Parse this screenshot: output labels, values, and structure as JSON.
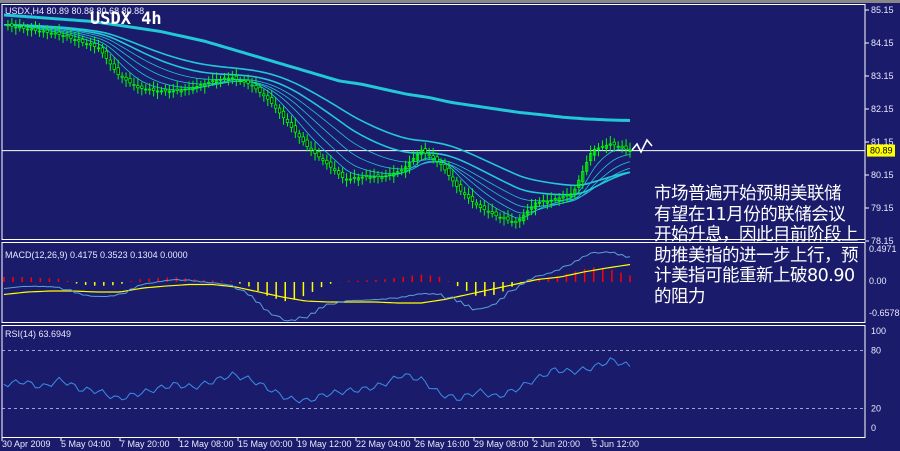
{
  "chart_data": [
    {
      "type": "line",
      "panel": "price",
      "symbol_header": "USDX,H4 80.89 80.88 80.68 80.88",
      "title": "USDX 4h",
      "ylim": [
        78.0,
        85.3
      ],
      "y_ticks": [
        "85.15",
        "84.15",
        "83.15",
        "82.15",
        "81.15",
        "80.15",
        "79.15",
        "78.15"
      ],
      "current_price": "80.89",
      "x_tick_labels": [
        "30 Apr 2009",
        "5 May 04:00",
        "7 May 20:00",
        "12 May 08:00",
        "15 May 00:00",
        "19 May 12:00",
        "22 May 04:00",
        "26 May 16:00",
        "29 May 08:00",
        "2 Jun 20:00",
        "5 Jun 12:00"
      ],
      "close": [
        84.7,
        84.6,
        84.5,
        84.4,
        84.2,
        84.0,
        83.2,
        82.8,
        82.7,
        82.7,
        82.8,
        83.0,
        83.1,
        82.9,
        82.4,
        81.7,
        81.0,
        80.5,
        80.0,
        80.1,
        80.1,
        80.3,
        80.9,
        80.5,
        79.7,
        79.2,
        78.9,
        78.7,
        79.3,
        79.4,
        79.6,
        80.9,
        81.1,
        80.89
      ],
      "long_ma": [
        85.0,
        84.95,
        84.9,
        84.85,
        84.8,
        84.7,
        84.6,
        84.5,
        84.35,
        84.2,
        84.0,
        83.8,
        83.6,
        83.4,
        83.2,
        83.0,
        82.9,
        82.75,
        82.6,
        82.5,
        82.35,
        82.25,
        82.15,
        82.05,
        81.98,
        81.9,
        81.85,
        81.82,
        81.8
      ],
      "candle_color": "#00ff00",
      "ma_color": "#22c8d8",
      "background": "#1b1b6b"
    },
    {
      "type": "bar",
      "panel": "macd",
      "label": "MACD(12,26,9) 0.4175 0.3523 0.1304 0.0000",
      "y_ticks": [
        "0.4971",
        "0.00",
        "-0.6578"
      ],
      "ylim": [
        -0.6578,
        0.4971
      ],
      "histogram": [
        0.1,
        0.1,
        0.08,
        0.06,
        -0.05,
        -0.08,
        -0.06,
        0.05,
        0.08,
        0.1,
        0.06,
        0.03,
        0.02,
        -0.1,
        -0.3,
        -0.4,
        -0.25,
        -0.05,
        0.02,
        0.03,
        0.05,
        0.1,
        0.15,
        0.1,
        -0.1,
        -0.3,
        -0.25,
        -0.05,
        0.05,
        0.1,
        0.2,
        0.3,
        0.25,
        0.13
      ],
      "positive_color": "#ff0000",
      "negative_color": "#ffff00",
      "signal": [
        -0.25,
        -0.2,
        -0.18,
        -0.18,
        -0.2,
        -0.2,
        -0.12,
        -0.08,
        -0.05,
        -0.05,
        -0.1,
        -0.2,
        -0.3,
        -0.38,
        -0.4,
        -0.4,
        -0.4,
        -0.42,
        -0.42,
        -0.35,
        -0.25,
        -0.15,
        -0.05,
        0.05,
        0.1,
        0.2,
        0.28,
        0.35
      ]
    },
    {
      "type": "line",
      "panel": "rsi",
      "label": "RSI(14) 63.6949",
      "y_ticks": [
        "100",
        "80",
        "20",
        "0"
      ],
      "ylim": [
        0,
        100
      ],
      "levels": [
        80,
        20
      ],
      "values": [
        45,
        48,
        42,
        50,
        40,
        38,
        30,
        35,
        40,
        45,
        42,
        48,
        55,
        50,
        40,
        30,
        28,
        35,
        38,
        40,
        45,
        55,
        50,
        35,
        30,
        38,
        32,
        40,
        50,
        60,
        58,
        62,
        70,
        63.69
      ],
      "line_color": "#3a8ee8"
    }
  ],
  "annotation": {
    "lines": [
      "市场普遍开始预期美联储",
      "有望在11月份的联储会议",
      "开始升息，因此目前阶段上",
      "助推美指的进一步上行，预",
      "计美指可能重新上破80.90",
      "的阻力"
    ]
  }
}
